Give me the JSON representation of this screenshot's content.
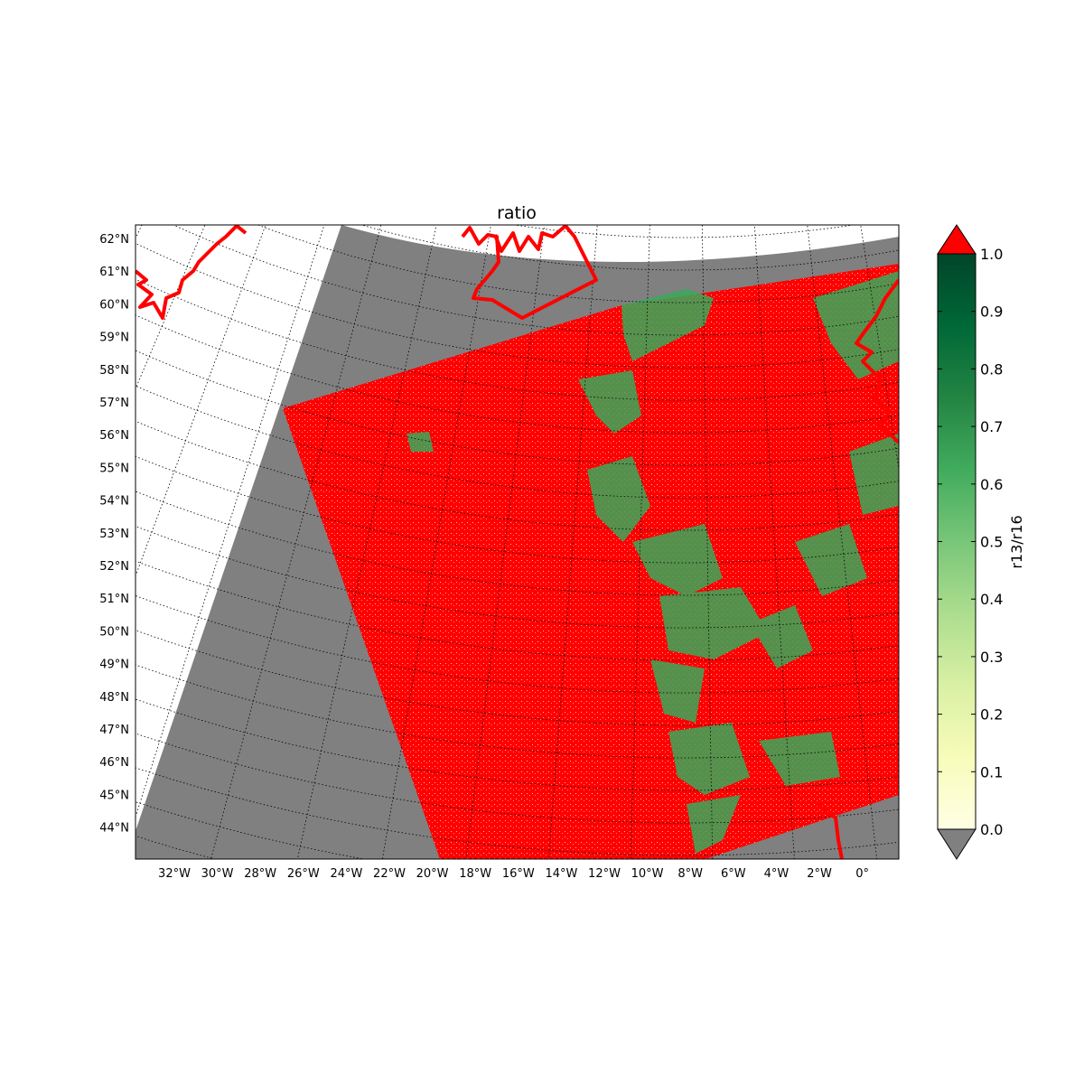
{
  "title": "ratio",
  "lat_labels": [
    "62°N",
    "61°N",
    "60°N",
    "59°N",
    "58°N",
    "57°N",
    "56°N",
    "55°N",
    "54°N",
    "53°N",
    "52°N",
    "51°N",
    "50°N",
    "49°N",
    "48°N",
    "47°N",
    "46°N",
    "45°N",
    "44°N"
  ],
  "lon_labels": [
    "32°W",
    "30°W",
    "28°W",
    "26°W",
    "24°W",
    "22°W",
    "20°W",
    "18°W",
    "16°W",
    "14°W",
    "12°W",
    "10°W",
    "8°W",
    "6°W",
    "4°W",
    "2°W",
    "0°"
  ],
  "colorbar": {
    "label": "r13/r16",
    "ticks": [
      "0.0",
      "0.1",
      "0.2",
      "0.3",
      "0.4",
      "0.5",
      "0.6",
      "0.7",
      "0.8",
      "0.9",
      "1.0"
    ],
    "stops": [
      "#ffffe5",
      "#f7fcb9",
      "#d9f0a3",
      "#addd8e",
      "#78c679",
      "#41ab5d",
      "#238443",
      "#006837",
      "#004529"
    ],
    "over_color": "#ff0000",
    "under_color": "#808080"
  },
  "colors": {
    "swath": "#ff0000",
    "nodata": "#808080",
    "coastline": "#ff0000",
    "graticule": "#000000"
  }
}
